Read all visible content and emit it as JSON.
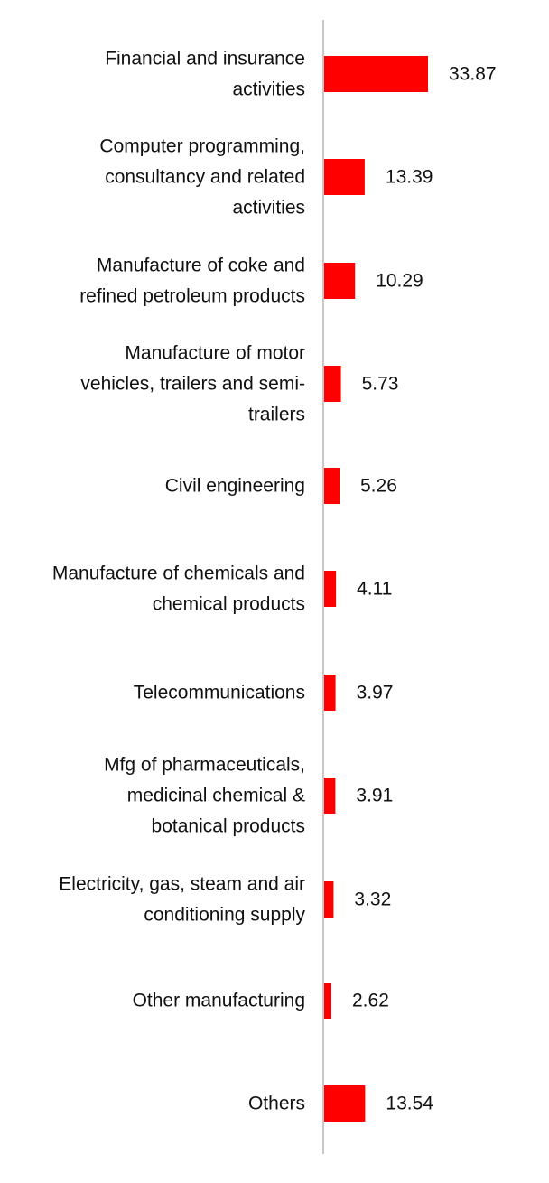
{
  "chart_data": {
    "type": "bar",
    "orientation": "horizontal",
    "bar_color": "#ff0000",
    "axis_color": "#c8c8c8",
    "categories": [
      [
        "Financial and insurance",
        "activities"
      ],
      [
        "Computer programming,",
        "consultancy and related",
        "activities"
      ],
      [
        "Manufacture of coke and",
        "refined petroleum products"
      ],
      [
        "Manufacture of motor",
        "vehicles, trailers and semi-",
        "trailers"
      ],
      [
        "Civil engineering"
      ],
      [
        "Manufacture of chemicals and",
        "chemical products"
      ],
      [
        "Telecommunications"
      ],
      [
        "Mfg of pharmaceuticals,",
        "medicinal chemical &",
        "botanical products"
      ],
      [
        "Electricity, gas, steam and air",
        "conditioning supply"
      ],
      [
        "Other manufacturing"
      ],
      [
        "Others"
      ]
    ],
    "values": [
      33.87,
      13.39,
      10.29,
      5.73,
      5.26,
      4.11,
      3.97,
      3.91,
      3.32,
      2.62,
      13.54
    ],
    "value_labels": [
      "33.87",
      "13.39",
      "10.29",
      "5.73",
      "5.26",
      "4.11",
      "3.97",
      "3.91",
      "3.32",
      "2.62",
      "13.54"
    ],
    "xlim": [
      0,
      40
    ],
    "grid": false,
    "legend": "none"
  }
}
